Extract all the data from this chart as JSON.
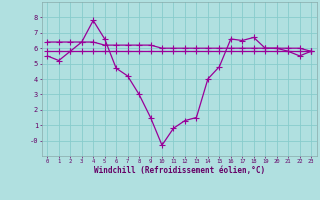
{
  "xlabel": "Windchill (Refroidissement éolien,°C)",
  "x": [
    0,
    1,
    2,
    3,
    4,
    5,
    6,
    7,
    8,
    9,
    10,
    11,
    12,
    13,
    14,
    15,
    16,
    17,
    18,
    19,
    20,
    21,
    22,
    23
  ],
  "line1": [
    5.5,
    5.2,
    5.8,
    6.4,
    7.8,
    6.6,
    4.7,
    4.2,
    3.0,
    1.5,
    -0.3,
    0.8,
    1.3,
    1.5,
    4.0,
    4.8,
    6.6,
    6.5,
    6.7,
    6.0,
    6.0,
    5.8,
    5.5,
    5.8
  ],
  "line2": [
    6.4,
    6.4,
    6.4,
    6.4,
    6.4,
    6.2,
    6.2,
    6.2,
    6.2,
    6.2,
    6.0,
    6.0,
    6.0,
    6.0,
    6.0,
    6.0,
    6.0,
    6.0,
    6.0,
    6.0,
    6.0,
    6.0,
    6.0,
    5.8
  ],
  "line3": [
    5.8,
    5.8,
    5.8,
    5.8,
    5.8,
    5.8,
    5.8,
    5.8,
    5.8,
    5.8,
    5.8,
    5.8,
    5.8,
    5.8,
    5.8,
    5.8,
    5.8,
    5.8,
    5.8,
    5.8,
    5.8,
    5.8,
    5.8,
    5.8
  ],
  "line_color": "#990099",
  "bg_color": "#b0e0e0",
  "grid_color": "#88cccc",
  "ylim": [
    -1,
    9
  ],
  "marker": "+",
  "markersize": 4,
  "linewidth": 0.9
}
